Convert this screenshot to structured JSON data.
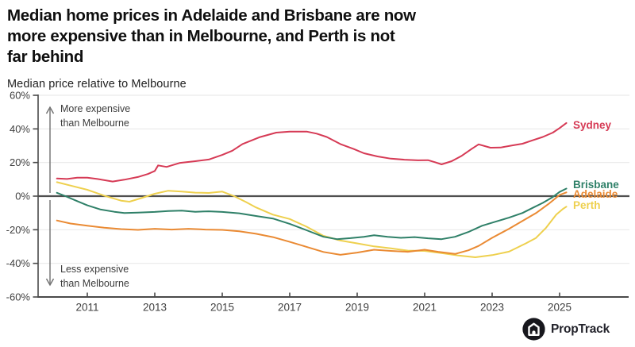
{
  "header": {
    "title_lines": [
      "Median home prices in Adelaide and Brisbane are now",
      "more expensive than in Melbourne, and Perth is not",
      "far behind"
    ],
    "subtitle": "Median price relative to Melbourne"
  },
  "annotations": {
    "more_expensive": [
      "More expensive",
      "than Melbourne"
    ],
    "less_expensive": [
      "Less expensive",
      "than Melbourne"
    ]
  },
  "footer": {
    "brand": "PropTrack"
  },
  "colors": {
    "sydney": "#d63a55",
    "brisbane": "#2f8068",
    "adelaide": "#ea8a33",
    "perth": "#eed04e",
    "gridline": "#e9e9e9",
    "zero_line": "#4f4f4f",
    "axis": "#4a4a4a",
    "tick_text": "#3f3f3f",
    "annotation_text": "#3c3c3c",
    "arrow": "#6e6e6e",
    "logo_circle": "#17171d"
  },
  "chart_data": {
    "type": "line",
    "title": "Median home prices in Adelaide and Brisbane are now more expensive than in Melbourne, and Perth is not far behind",
    "subtitle": "Median price relative to Melbourne",
    "xlabel": "",
    "ylabel": "Median price relative to Melbourne (%)",
    "xlim": [
      2010,
      2025.5
    ],
    "ylim": [
      -60,
      60
    ],
    "grid": true,
    "legend_position": "line-end-labels",
    "x_ticks": [
      2011,
      2013,
      2015,
      2017,
      2019,
      2021,
      2023,
      2025
    ],
    "y_ticks": [
      60,
      40,
      20,
      0,
      -20,
      -40,
      -60
    ],
    "y_tick_labels": [
      "60%",
      "40%",
      "20%",
      "0%",
      "-20%",
      "-40%",
      "-60%"
    ],
    "series": [
      {
        "name": "Perth",
        "color": "#eed04e",
        "points": [
          [
            2010.1,
            8.3
          ],
          [
            2010.5,
            6.3
          ],
          [
            2011,
            3.8
          ],
          [
            2011.5,
            0.3
          ],
          [
            2012,
            -2.7
          ],
          [
            2012.25,
            -3.3
          ],
          [
            2012.6,
            -1.2
          ],
          [
            2013,
            1.4
          ],
          [
            2013.4,
            3.2
          ],
          [
            2013.8,
            2.7
          ],
          [
            2014.2,
            2.1
          ],
          [
            2014.6,
            1.9
          ],
          [
            2015,
            2.7
          ],
          [
            2015.35,
            0
          ],
          [
            2015.7,
            -3.5
          ],
          [
            2016,
            -6.7
          ],
          [
            2016.5,
            -11
          ],
          [
            2017,
            -13.6
          ],
          [
            2017.5,
            -18.2
          ],
          [
            2018,
            -23.6
          ],
          [
            2018.5,
            -26.4
          ],
          [
            2019,
            -28.1
          ],
          [
            2019.5,
            -29.9
          ],
          [
            2020,
            -31.1
          ],
          [
            2020.5,
            -32.4
          ],
          [
            2021,
            -32.6
          ],
          [
            2021.5,
            -33.9
          ],
          [
            2022,
            -35.3
          ],
          [
            2022.5,
            -36.4
          ],
          [
            2023,
            -35.1
          ],
          [
            2023.5,
            -33
          ],
          [
            2024,
            -28.1
          ],
          [
            2024.3,
            -24.9
          ],
          [
            2024.6,
            -18.8
          ],
          [
            2024.9,
            -11
          ],
          [
            2025.1,
            -7.6
          ],
          [
            2025.2,
            -6.3
          ]
        ]
      },
      {
        "name": "Adelaide",
        "color": "#ea8a33",
        "points": [
          [
            2010.1,
            -14.5
          ],
          [
            2010.5,
            -16.3
          ],
          [
            2011,
            -17.6
          ],
          [
            2011.5,
            -18.8
          ],
          [
            2012,
            -19.6
          ],
          [
            2012.5,
            -20.1
          ],
          [
            2013,
            -19.4
          ],
          [
            2013.5,
            -19.9
          ],
          [
            2014,
            -19.4
          ],
          [
            2014.5,
            -19.9
          ],
          [
            2015,
            -20.1
          ],
          [
            2015.5,
            -20.9
          ],
          [
            2016,
            -22.4
          ],
          [
            2016.5,
            -24.4
          ],
          [
            2017,
            -27.2
          ],
          [
            2017.5,
            -30.2
          ],
          [
            2018,
            -33.2
          ],
          [
            2018.5,
            -34.9
          ],
          [
            2019,
            -33.6
          ],
          [
            2019.5,
            -31.9
          ],
          [
            2020,
            -32.6
          ],
          [
            2020.5,
            -33.1
          ],
          [
            2021,
            -31.9
          ],
          [
            2021.4,
            -33.1
          ],
          [
            2021.9,
            -34.4
          ],
          [
            2022.3,
            -32.2
          ],
          [
            2022.6,
            -29.6
          ],
          [
            2023,
            -24.8
          ],
          [
            2023.5,
            -19.4
          ],
          [
            2024,
            -13.6
          ],
          [
            2024.3,
            -10.1
          ],
          [
            2024.7,
            -4.2
          ],
          [
            2025,
            0.7
          ],
          [
            2025.2,
            2.2
          ]
        ]
      },
      {
        "name": "Brisbane",
        "color": "#2f8068",
        "points": [
          [
            2010.1,
            2
          ],
          [
            2010.35,
            0
          ],
          [
            2010.7,
            -3
          ],
          [
            2011,
            -5.5
          ],
          [
            2011.4,
            -8
          ],
          [
            2011.8,
            -9.3
          ],
          [
            2012.1,
            -10
          ],
          [
            2012.5,
            -9.8
          ],
          [
            2013,
            -9.4
          ],
          [
            2013.4,
            -8.9
          ],
          [
            2013.8,
            -8.6
          ],
          [
            2014.2,
            -9.3
          ],
          [
            2014.6,
            -9
          ],
          [
            2015,
            -9.4
          ],
          [
            2015.5,
            -10.2
          ],
          [
            2016,
            -11.8
          ],
          [
            2016.5,
            -13.3
          ],
          [
            2017,
            -16.5
          ],
          [
            2017.5,
            -20.3
          ],
          [
            2018,
            -24.2
          ],
          [
            2018.4,
            -25.6
          ],
          [
            2018.8,
            -25
          ],
          [
            2019.2,
            -24.2
          ],
          [
            2019.5,
            -23.3
          ],
          [
            2019.9,
            -24.2
          ],
          [
            2020.3,
            -24.8
          ],
          [
            2020.7,
            -24.4
          ],
          [
            2021.1,
            -25.1
          ],
          [
            2021.5,
            -25.6
          ],
          [
            2021.9,
            -24.2
          ],
          [
            2022.3,
            -21.3
          ],
          [
            2022.7,
            -17.6
          ],
          [
            2023.1,
            -15.2
          ],
          [
            2023.5,
            -12.8
          ],
          [
            2023.9,
            -10
          ],
          [
            2024.2,
            -7
          ],
          [
            2024.5,
            -4
          ],
          [
            2024.8,
            -0.5
          ],
          [
            2025,
            2.5
          ],
          [
            2025.2,
            4.5
          ]
        ]
      },
      {
        "name": "Sydney",
        "color": "#d63a55",
        "points": [
          [
            2010.1,
            10.5
          ],
          [
            2010.4,
            10.2
          ],
          [
            2010.7,
            11
          ],
          [
            2011,
            11
          ],
          [
            2011.3,
            10.2
          ],
          [
            2011.75,
            8.7
          ],
          [
            2012.1,
            9.8
          ],
          [
            2012.5,
            11.4
          ],
          [
            2012.8,
            13.2
          ],
          [
            2013,
            15
          ],
          [
            2013.1,
            18.3
          ],
          [
            2013.35,
            17.4
          ],
          [
            2013.75,
            19.8
          ],
          [
            2014.2,
            20.8
          ],
          [
            2014.6,
            21.8
          ],
          [
            2015,
            24.5
          ],
          [
            2015.3,
            27
          ],
          [
            2015.6,
            31
          ],
          [
            2016.1,
            35
          ],
          [
            2016.6,
            37.8
          ],
          [
            2017,
            38.4
          ],
          [
            2017.5,
            38.4
          ],
          [
            2017.8,
            37.2
          ],
          [
            2018.1,
            35.2
          ],
          [
            2018.5,
            31
          ],
          [
            2018.9,
            28
          ],
          [
            2019.2,
            25.5
          ],
          [
            2019.6,
            23.6
          ],
          [
            2020,
            22.3
          ],
          [
            2020.4,
            21.7
          ],
          [
            2020.8,
            21.3
          ],
          [
            2021.1,
            21.4
          ],
          [
            2021.3,
            20.2
          ],
          [
            2021.5,
            18.9
          ],
          [
            2021.8,
            20.8
          ],
          [
            2022.1,
            24
          ],
          [
            2022.4,
            28.2
          ],
          [
            2022.6,
            30.8
          ],
          [
            2022.95,
            28.8
          ],
          [
            2023.25,
            28.9
          ],
          [
            2023.6,
            30.2
          ],
          [
            2023.9,
            31.2
          ],
          [
            2024.2,
            33.2
          ],
          [
            2024.5,
            35.2
          ],
          [
            2024.8,
            37.8
          ],
          [
            2025,
            40.5
          ],
          [
            2025.2,
            43.5
          ]
        ]
      }
    ]
  }
}
